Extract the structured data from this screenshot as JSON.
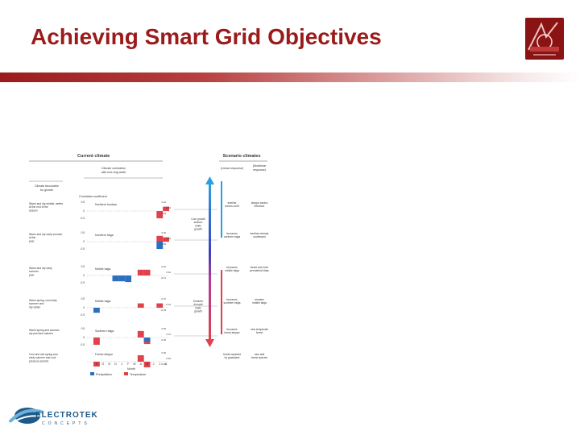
{
  "slide": {
    "title": "Achieving Smart Grid Objectives"
  },
  "logo": {
    "badge_icon": "grid-poster-logo-icon",
    "company_name": "ELECTROTEK",
    "company_sub": "CONCEPTS",
    "company_icon": "swoosh-logo-icon",
    "brand_color": "#1d5a8a"
  },
  "colors": {
    "title": "#9b1b1b",
    "precipitation": "#2c6fbf",
    "temperature": "#e0414a"
  },
  "figure": {
    "current_header": "Current climate",
    "scenario_header": "Scenario climates",
    "correlation_title": [
      "Climate correlation",
      "with tree-ring width"
    ],
    "favourable_title": [
      "Climate favourable",
      "for growth"
    ],
    "coefficient_label": "Correlation coefficient",
    "linear_label": [
      "(Linear response)"
    ],
    "nonlinear_label": [
      "(Nonlinear",
      "response)"
    ],
    "month_label": "Month",
    "months": [
      "S",
      "O",
      "N",
      "D",
      "J",
      "F",
      "M",
      "A",
      "M",
      "J",
      "J",
      "A"
    ],
    "legend": [
      {
        "name": "Precipitation",
        "color": "#2c6fbf"
      },
      {
        "name": "Temperature",
        "color": "#e0414a"
      }
    ],
    "cool_growth": [
      "Cool growth",
      "season",
      "limits",
      "growth"
    ],
    "summer_drought": [
      "Summer",
      "drought",
      "limits",
      "growth"
    ],
    "rows": [
      {
        "zone": "Northern tundras",
        "favourable": [
          "Warm and dry middle, wetter",
          "at the end of the",
          "season"
        ],
        "linear": [
          "treeline",
          "moves north"
        ],
        "nonlinear": [
          "steppe-tundra",
          "interface"
        ],
        "ticks": [
          "0.5",
          "0",
          "-0.5"
        ],
        "labels": [
          "0.44",
          "0.53",
          "-0.52"
        ]
      },
      {
        "zone": "Northern taiga",
        "favourable": [
          "Warm and dry early summer",
          "at the",
          "year"
        ],
        "linear": [
          "becomes",
          "northern taiga"
        ],
        "nonlinear": [
          "treeline retreats",
          "southward"
        ],
        "ticks": [
          "0.5",
          "0",
          "-0.5"
        ],
        "labels": [
          "0.32",
          "0.34",
          "-0.50"
        ]
      },
      {
        "zone": "Middle taiga",
        "favourable": [
          "Warm and dry early",
          "summer",
          "year"
        ],
        "linear": [
          "becomes",
          "middle taiga"
        ],
        "nonlinear": [
          "forest loss from",
          "permafrost thaw"
        ],
        "ticks": [
          "0.5",
          "0",
          "-0.5"
        ],
        "labels": [
          "0.43",
          "0.42",
          "-0.41"
        ]
      },
      {
        "zone": "Middle taiga",
        "favourable": [
          "Warm spring, cool early",
          "summer and",
          "dry winter"
        ],
        "linear": [
          "becomes",
          "southern taiga"
        ],
        "nonlinear": [
          "remains",
          "middle taiga"
        ],
        "ticks": [
          "0.5",
          "0",
          "-0.5"
        ],
        "labels": [
          "-0.37",
          "-0.44",
          "-0.49"
        ]
      },
      {
        "zone": "Southern taiga",
        "favourable": [
          "Warm spring and summer",
          "dry previous autumn"
        ],
        "linear": [
          "becomes",
          "forest-steppe"
        ],
        "nonlinear": [
          "new temperate",
          "forest"
        ],
        "ticks": [
          "0.5",
          "0",
          "-0.5"
        ],
        "labels": [
          "0.35",
          "0.31",
          "-0.35"
        ]
      },
      {
        "zone": "Forest-steppe",
        "favourable": [
          "Cool and wet spring and",
          "early summer and cool",
          "previous autumn"
        ],
        "linear": [
          "forest replaced",
          "by grassland"
        ],
        "nonlinear": [
          "new arid",
          "forest species"
        ],
        "ticks": [
          "0.5",
          "0",
          "-0.5"
        ],
        "labels": [
          "0.45",
          "-0.46",
          "-0.55"
        ]
      }
    ]
  }
}
